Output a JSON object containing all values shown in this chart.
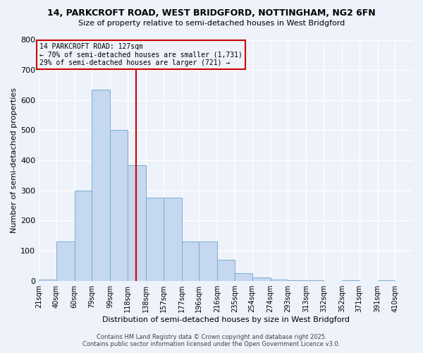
{
  "title1": "14, PARKCROFT ROAD, WEST BRIDGFORD, NOTTINGHAM, NG2 6FN",
  "title2": "Size of property relative to semi-detached houses in West Bridgford",
  "xlabel": "Distribution of semi-detached houses by size in West Bridgford",
  "ylabel": "Number of semi-detached properties",
  "bin_labels": [
    "21sqm",
    "40sqm",
    "60sqm",
    "79sqm",
    "99sqm",
    "118sqm",
    "138sqm",
    "157sqm",
    "177sqm",
    "196sqm",
    "216sqm",
    "235sqm",
    "254sqm",
    "274sqm",
    "293sqm",
    "313sqm",
    "332sqm",
    "352sqm",
    "371sqm",
    "391sqm",
    "410sqm"
  ],
  "bin_edges": [
    21,
    40,
    60,
    79,
    99,
    118,
    138,
    157,
    177,
    196,
    216,
    235,
    254,
    274,
    293,
    313,
    332,
    352,
    371,
    391,
    410
  ],
  "bar_heights": [
    5,
    130,
    300,
    635,
    500,
    385,
    275,
    275,
    130,
    130,
    70,
    25,
    10,
    5,
    2,
    1,
    0,
    1,
    0,
    1,
    0
  ],
  "bar_color": "#c5d8f0",
  "bar_edge_color": "#7aadd4",
  "property_size": 127,
  "vline_color": "#cc0000",
  "annotation_title": "14 PARKCROFT ROAD: 127sqm",
  "annotation_line1": "← 70% of semi-detached houses are smaller (1,731)",
  "annotation_line2": "29% of semi-detached houses are larger (721) →",
  "annotation_box_color": "#cc0000",
  "ylim": [
    0,
    800
  ],
  "yticks": [
    0,
    100,
    200,
    300,
    400,
    500,
    600,
    700,
    800
  ],
  "footer1": "Contains HM Land Registry data © Crown copyright and database right 2025.",
  "footer2": "Contains public sector information licensed under the Open Government Licence v3.0.",
  "bg_color": "#eef2fa",
  "grid_color": "#ffffff"
}
